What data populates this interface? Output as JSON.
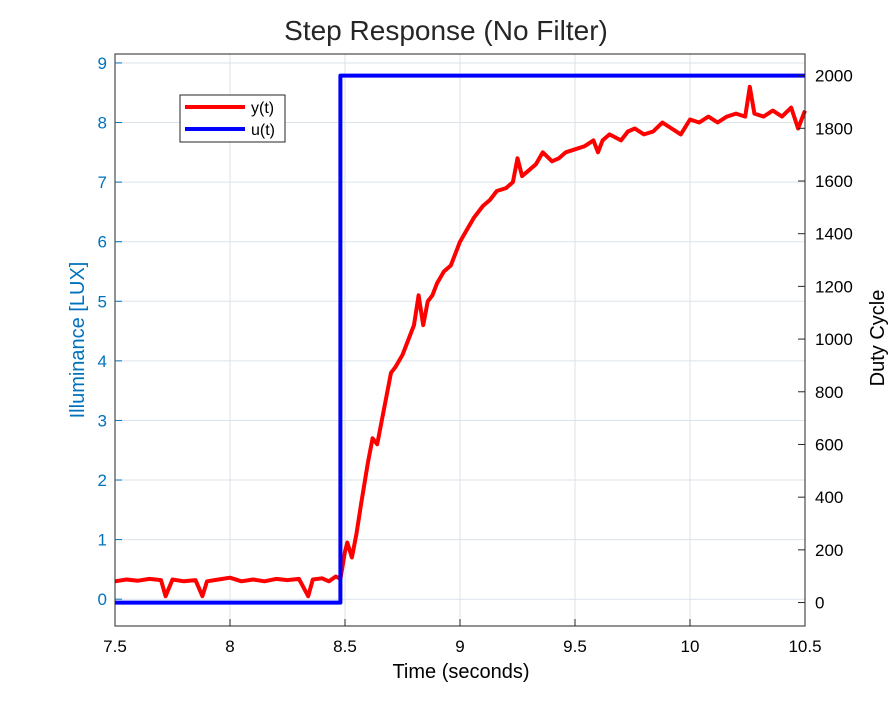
{
  "chart_data": {
    "type": "line",
    "title": "Step Response (No Filter)",
    "xlabel": "Time (seconds)",
    "ylabel_left": "Illuminance [LUX]",
    "ylabel_right": "Duty Cycle",
    "xlim": [
      7.5,
      10.5
    ],
    "ylim_left": [
      -0.45,
      9.15
    ],
    "ylim_right": [
      -89,
      2082
    ],
    "xticks": [
      "7.5",
      "8",
      "8.5",
      "9",
      "9.5",
      "10",
      "10.5"
    ],
    "xtick_values": [
      7.5,
      8,
      8.5,
      9,
      9.5,
      10,
      10.5
    ],
    "yticks_left": [
      "0",
      "1",
      "2",
      "3",
      "4",
      "5",
      "6",
      "7",
      "8",
      "9"
    ],
    "ytick_values_left": [
      0,
      1,
      2,
      3,
      4,
      5,
      6,
      7,
      8,
      9
    ],
    "yticks_right": [
      "0",
      "200",
      "400",
      "600",
      "800",
      "1000",
      "1200",
      "1400",
      "1600",
      "1800",
      "2000"
    ],
    "ytick_values_right": [
      0,
      200,
      400,
      600,
      800,
      1000,
      1200,
      1400,
      1600,
      1800,
      2000
    ],
    "grid": true,
    "legend_position": "top-left",
    "series": [
      {
        "name": "y(t)",
        "axis": "left",
        "color": "#ff0000",
        "x": [
          7.5,
          7.55,
          7.6,
          7.65,
          7.7,
          7.72,
          7.75,
          7.8,
          7.85,
          7.88,
          7.9,
          7.95,
          8.0,
          8.05,
          8.1,
          8.15,
          8.2,
          8.25,
          8.3,
          8.34,
          8.36,
          8.4,
          8.43,
          8.46,
          8.48,
          8.5,
          8.51,
          8.53,
          8.55,
          8.57,
          8.6,
          8.62,
          8.64,
          8.66,
          8.68,
          8.7,
          8.72,
          8.75,
          8.78,
          8.8,
          8.82,
          8.84,
          8.86,
          8.88,
          8.9,
          8.93,
          8.96,
          9.0,
          9.03,
          9.06,
          9.1,
          9.13,
          9.16,
          9.2,
          9.23,
          9.25,
          9.27,
          9.3,
          9.33,
          9.36,
          9.4,
          9.43,
          9.46,
          9.5,
          9.54,
          9.58,
          9.6,
          9.62,
          9.65,
          9.7,
          9.73,
          9.76,
          9.8,
          9.84,
          9.88,
          9.92,
          9.96,
          10.0,
          10.04,
          10.08,
          10.12,
          10.16,
          10.2,
          10.24,
          10.26,
          10.28,
          10.32,
          10.36,
          10.4,
          10.44,
          10.47,
          10.5
        ],
        "values": [
          0.3,
          0.33,
          0.31,
          0.34,
          0.32,
          0.05,
          0.33,
          0.3,
          0.32,
          0.05,
          0.3,
          0.33,
          0.36,
          0.3,
          0.33,
          0.3,
          0.34,
          0.32,
          0.34,
          0.05,
          0.33,
          0.35,
          0.3,
          0.38,
          0.34,
          0.8,
          0.95,
          0.7,
          1.1,
          1.6,
          2.3,
          2.7,
          2.6,
          3.0,
          3.4,
          3.8,
          3.9,
          4.1,
          4.4,
          4.6,
          5.1,
          4.6,
          5.0,
          5.1,
          5.3,
          5.5,
          5.6,
          6.0,
          6.2,
          6.4,
          6.6,
          6.7,
          6.85,
          6.9,
          7.0,
          7.4,
          7.1,
          7.2,
          7.3,
          7.5,
          7.35,
          7.4,
          7.5,
          7.55,
          7.6,
          7.7,
          7.5,
          7.7,
          7.8,
          7.7,
          7.85,
          7.9,
          7.8,
          7.85,
          8.0,
          7.9,
          7.8,
          8.05,
          8.0,
          8.1,
          8.0,
          8.1,
          8.15,
          8.1,
          8.6,
          8.15,
          8.1,
          8.2,
          8.1,
          8.25,
          7.9,
          8.2
        ]
      },
      {
        "name": "u(t)",
        "axis": "right",
        "color": "#0000ff",
        "x": [
          7.5,
          8.48,
          8.48,
          10.5
        ],
        "values": [
          0,
          0,
          2000,
          2000
        ]
      }
    ]
  }
}
